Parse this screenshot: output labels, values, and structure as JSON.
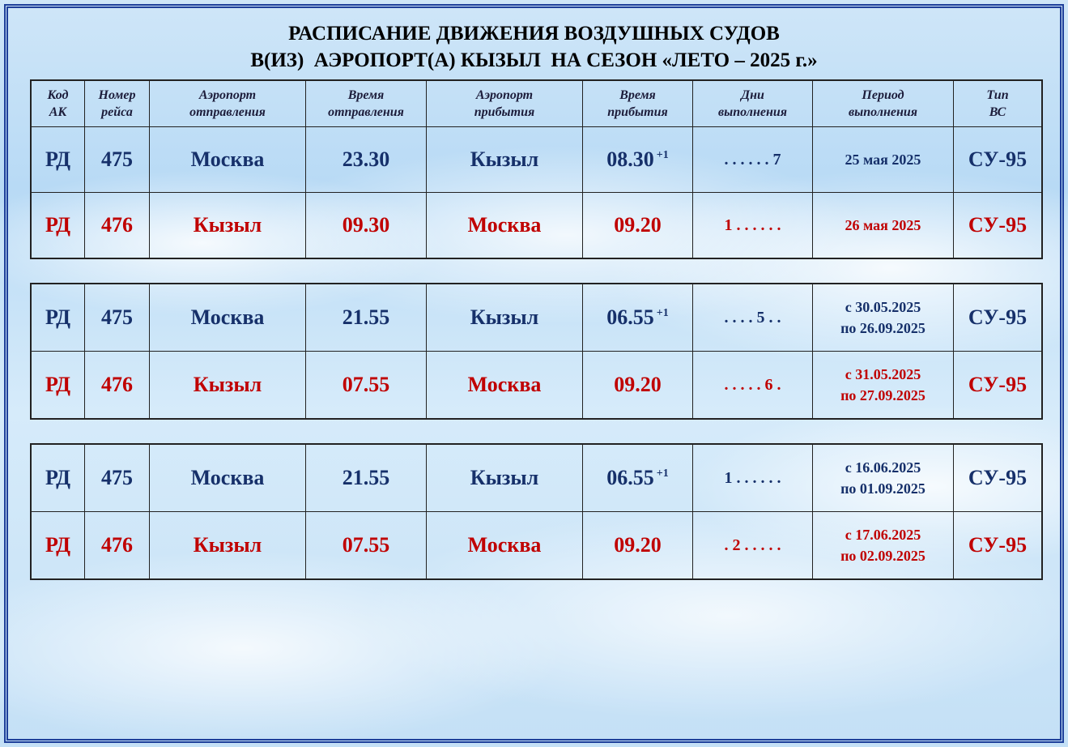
{
  "title": [
    "РАСПИСАНИЕ ДВИЖЕНИЯ ВОЗДУШНЫХ СУДОВ",
    "В(ИЗ)  АЭРОПОРТ(А) КЫЗЫЛ  НА СЕЗОН «ЛЕТО – 2025 г.»"
  ],
  "header": [
    [
      "Код",
      "АК"
    ],
    [
      "Номер",
      "рейса"
    ],
    [
      "Аэропорт",
      "отправления"
    ],
    [
      "Время",
      "отправления"
    ],
    [
      "Аэропорт",
      "прибытия"
    ],
    [
      "Время",
      "прибытия"
    ],
    [
      "Дни",
      "выполнения"
    ],
    [
      "Период",
      "выполнения"
    ],
    [
      "Тип",
      "ВС"
    ]
  ],
  "blocks": [
    [
      {
        "airline": "РД",
        "flight": "475",
        "from": "Москва",
        "dep": "23.30",
        "to": "Кызыл",
        "arr": "08.30",
        "arr_note": "+1",
        "days": ". . . . . . 7",
        "period": [
          "25 мая 2025"
        ],
        "aircraft": "СУ-95"
      },
      {
        "airline": "РД",
        "flight": "476",
        "from": "Кызыл",
        "dep": "09.30",
        "to": "Москва",
        "arr": "09.20",
        "days": "1 . . . . . .",
        "period": [
          "26 мая 2025"
        ],
        "aircraft": "СУ-95"
      }
    ],
    [
      {
        "airline": "РД",
        "flight": "475",
        "from": "Москва",
        "dep": "21.55",
        "to": "Кызыл",
        "arr": "06.55",
        "arr_note": "+1",
        "days": ". . . . 5 . .",
        "period": [
          "с 30.05.2025",
          "по 26.09.2025"
        ],
        "aircraft": "СУ-95"
      },
      {
        "airline": "РД",
        "flight": "476",
        "from": "Кызыл",
        "dep": "07.55",
        "to": "Москва",
        "arr": "09.20",
        "days": ". . . . . 6 .",
        "period": [
          "с 31.05.2025",
          "по 27.09.2025"
        ],
        "aircraft": "СУ-95"
      }
    ],
    [
      {
        "airline": "РД",
        "flight": "475",
        "from": "Москва",
        "dep": "21.55",
        "to": "Кызыл",
        "arr": "06.55",
        "arr_note": "+1",
        "days": "1 . . . . . .",
        "period": [
          "с 16.06.2025",
          "по 01.09.2025"
        ],
        "aircraft": "СУ-95"
      },
      {
        "airline": "РД",
        "flight": "476",
        "from": "Кызыл",
        "dep": "07.55",
        "to": "Москва",
        "arr": "09.20",
        "days": ". 2 . . . . .",
        "period": [
          "с 17.06.2025",
          "по 02.09.2025"
        ],
        "aircraft": "СУ-95"
      }
    ]
  ]
}
